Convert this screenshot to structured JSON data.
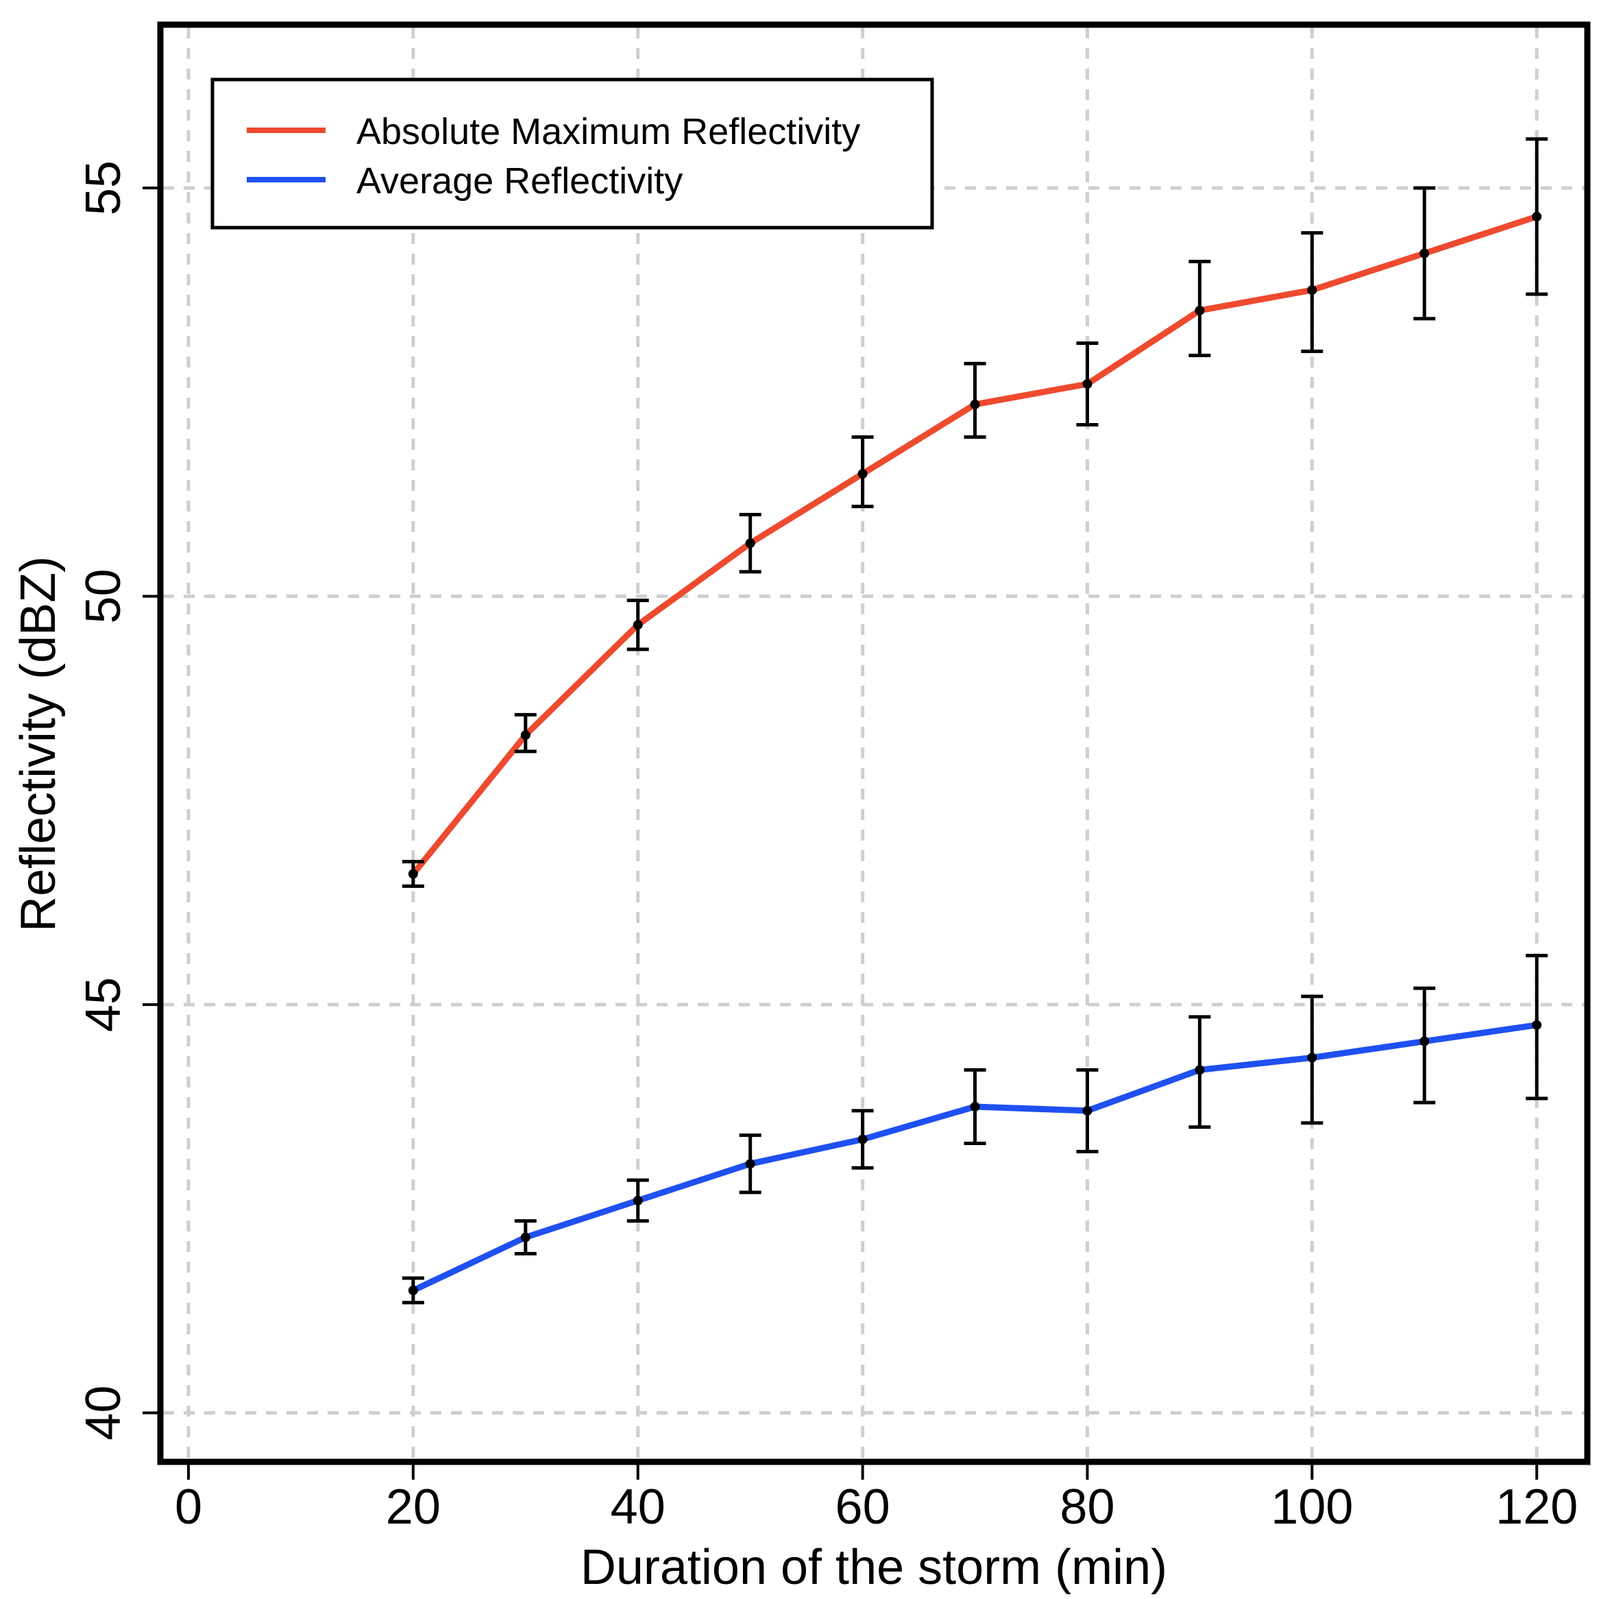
{
  "chart_data": {
    "type": "line",
    "title": "",
    "xlabel": "Duration of the storm (min)",
    "ylabel": "Reflectivity (dBZ)",
    "xlim": [
      -2.5,
      124.5
    ],
    "ylim": [
      39.4,
      57.0
    ],
    "xticks": [
      0,
      20,
      40,
      60,
      80,
      100,
      120
    ],
    "yticks": [
      40,
      45,
      50,
      55
    ],
    "grid": true,
    "legend_position": "top-left",
    "x": [
      20,
      30,
      40,
      50,
      60,
      70,
      80,
      90,
      100,
      110,
      120
    ],
    "series": [
      {
        "name": "Absolute Maximum Reflectivity",
        "color": "#ee4a2e",
        "values": [
          46.6,
          48.3,
          49.65,
          50.65,
          51.5,
          52.35,
          52.6,
          53.5,
          53.75,
          54.2,
          54.65
        ],
        "err_low": [
          46.45,
          48.1,
          49.35,
          50.3,
          51.1,
          51.95,
          52.1,
          52.95,
          53.0,
          53.4,
          53.7
        ],
        "err_high": [
          46.75,
          48.55,
          49.95,
          51.0,
          51.95,
          52.85,
          53.1,
          54.1,
          54.45,
          55.0,
          55.6
        ]
      },
      {
        "name": "Average Reflectivity",
        "color": "#1f50f2",
        "values": [
          41.5,
          42.15,
          42.6,
          43.05,
          43.35,
          43.75,
          43.7,
          44.2,
          44.35,
          44.55,
          44.75
        ],
        "err_low": [
          41.35,
          41.95,
          42.35,
          42.7,
          43.0,
          43.3,
          43.2,
          43.5,
          43.55,
          43.8,
          43.85
        ],
        "err_high": [
          41.65,
          42.35,
          42.85,
          43.4,
          43.7,
          44.2,
          44.2,
          44.85,
          45.1,
          45.2,
          45.6
        ]
      }
    ]
  }
}
